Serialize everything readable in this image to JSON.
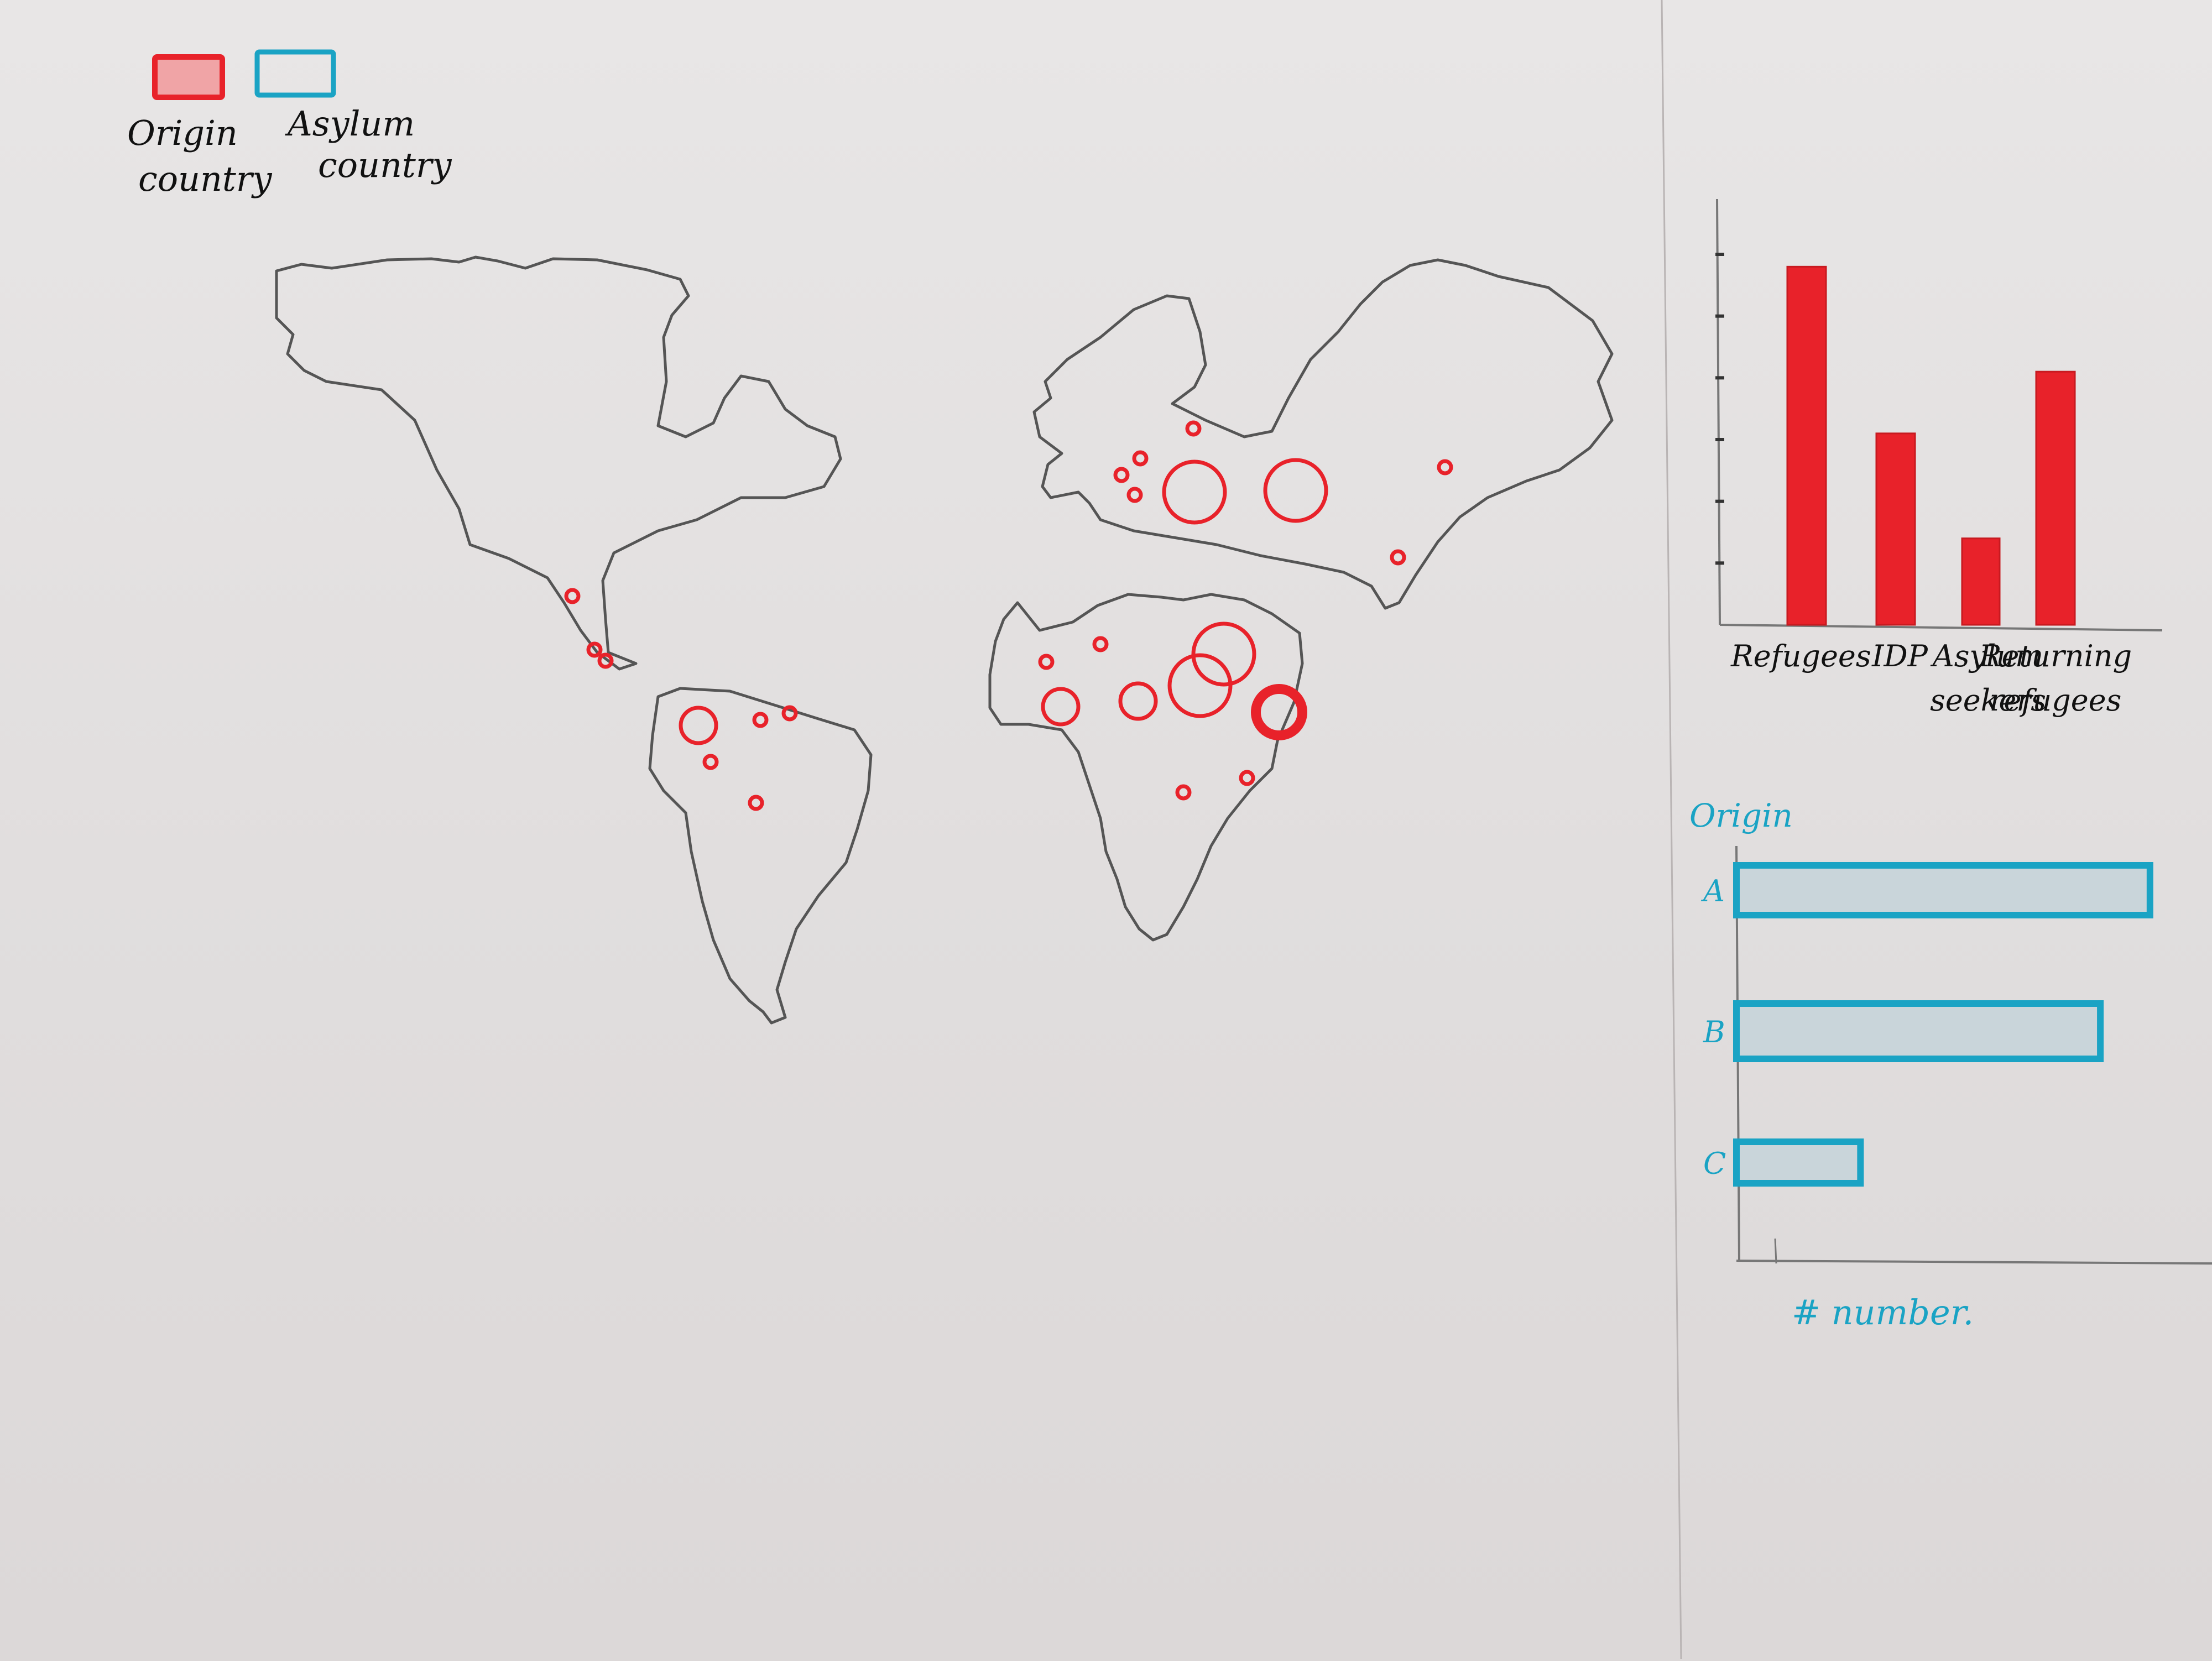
{
  "legend": {
    "origin_label": "Origin",
    "origin_label2": "country",
    "asylum_label": "Asylum",
    "asylum_label2": "country",
    "origin_color": "#e8222a",
    "asylum_color": "#1aa3c4"
  },
  "map": {
    "marker_color": "#e8222a",
    "markers": [
      {
        "region": "north-america",
        "size": "small"
      },
      {
        "region": "north-america",
        "size": "small"
      },
      {
        "region": "north-america",
        "size": "small"
      },
      {
        "region": "south-america",
        "size": "medium"
      },
      {
        "region": "south-america",
        "size": "small"
      },
      {
        "region": "south-america",
        "size": "small"
      },
      {
        "region": "south-america",
        "size": "small"
      },
      {
        "region": "south-america",
        "size": "small"
      },
      {
        "region": "europe",
        "size": "small"
      },
      {
        "region": "europe",
        "size": "small"
      },
      {
        "region": "europe",
        "size": "small"
      },
      {
        "region": "europe",
        "size": "small"
      },
      {
        "region": "europe",
        "size": "large"
      },
      {
        "region": "asia",
        "size": "large"
      },
      {
        "region": "asia",
        "size": "small"
      },
      {
        "region": "asia",
        "size": "small"
      },
      {
        "region": "africa",
        "size": "small"
      },
      {
        "region": "africa",
        "size": "small"
      },
      {
        "region": "africa",
        "size": "medium"
      },
      {
        "region": "africa",
        "size": "medium"
      },
      {
        "region": "africa",
        "size": "large"
      },
      {
        "region": "africa",
        "size": "large"
      },
      {
        "region": "africa",
        "size": "xlarge-bold"
      },
      {
        "region": "africa",
        "size": "small"
      },
      {
        "region": "africa",
        "size": "small"
      }
    ]
  },
  "chart_data": [
    {
      "type": "bar",
      "orientation": "vertical",
      "categories": [
        "Refugees",
        "IDP",
        "Asylum seekers",
        "Returning refugees"
      ],
      "category_lines": [
        [
          "Refugees"
        ],
        [
          "IDP"
        ],
        [
          "Asylum",
          "seekers"
        ],
        [
          "Returning",
          "refugees"
        ]
      ],
      "values": [
        5.8,
        3.1,
        1.4,
        4.1
      ],
      "ylim": [
        0,
        6
      ],
      "ticks": [
        1,
        2,
        3,
        4,
        5,
        6
      ],
      "color": "#e8222a"
    },
    {
      "type": "bar",
      "orientation": "horizontal",
      "ylabel": "Origin",
      "xlabel": "# number.",
      "categories": [
        "A",
        "B",
        "C"
      ],
      "values": [
        100,
        88,
        30
      ],
      "xlim": [
        0,
        115
      ],
      "color": "#1aa3c4"
    }
  ]
}
